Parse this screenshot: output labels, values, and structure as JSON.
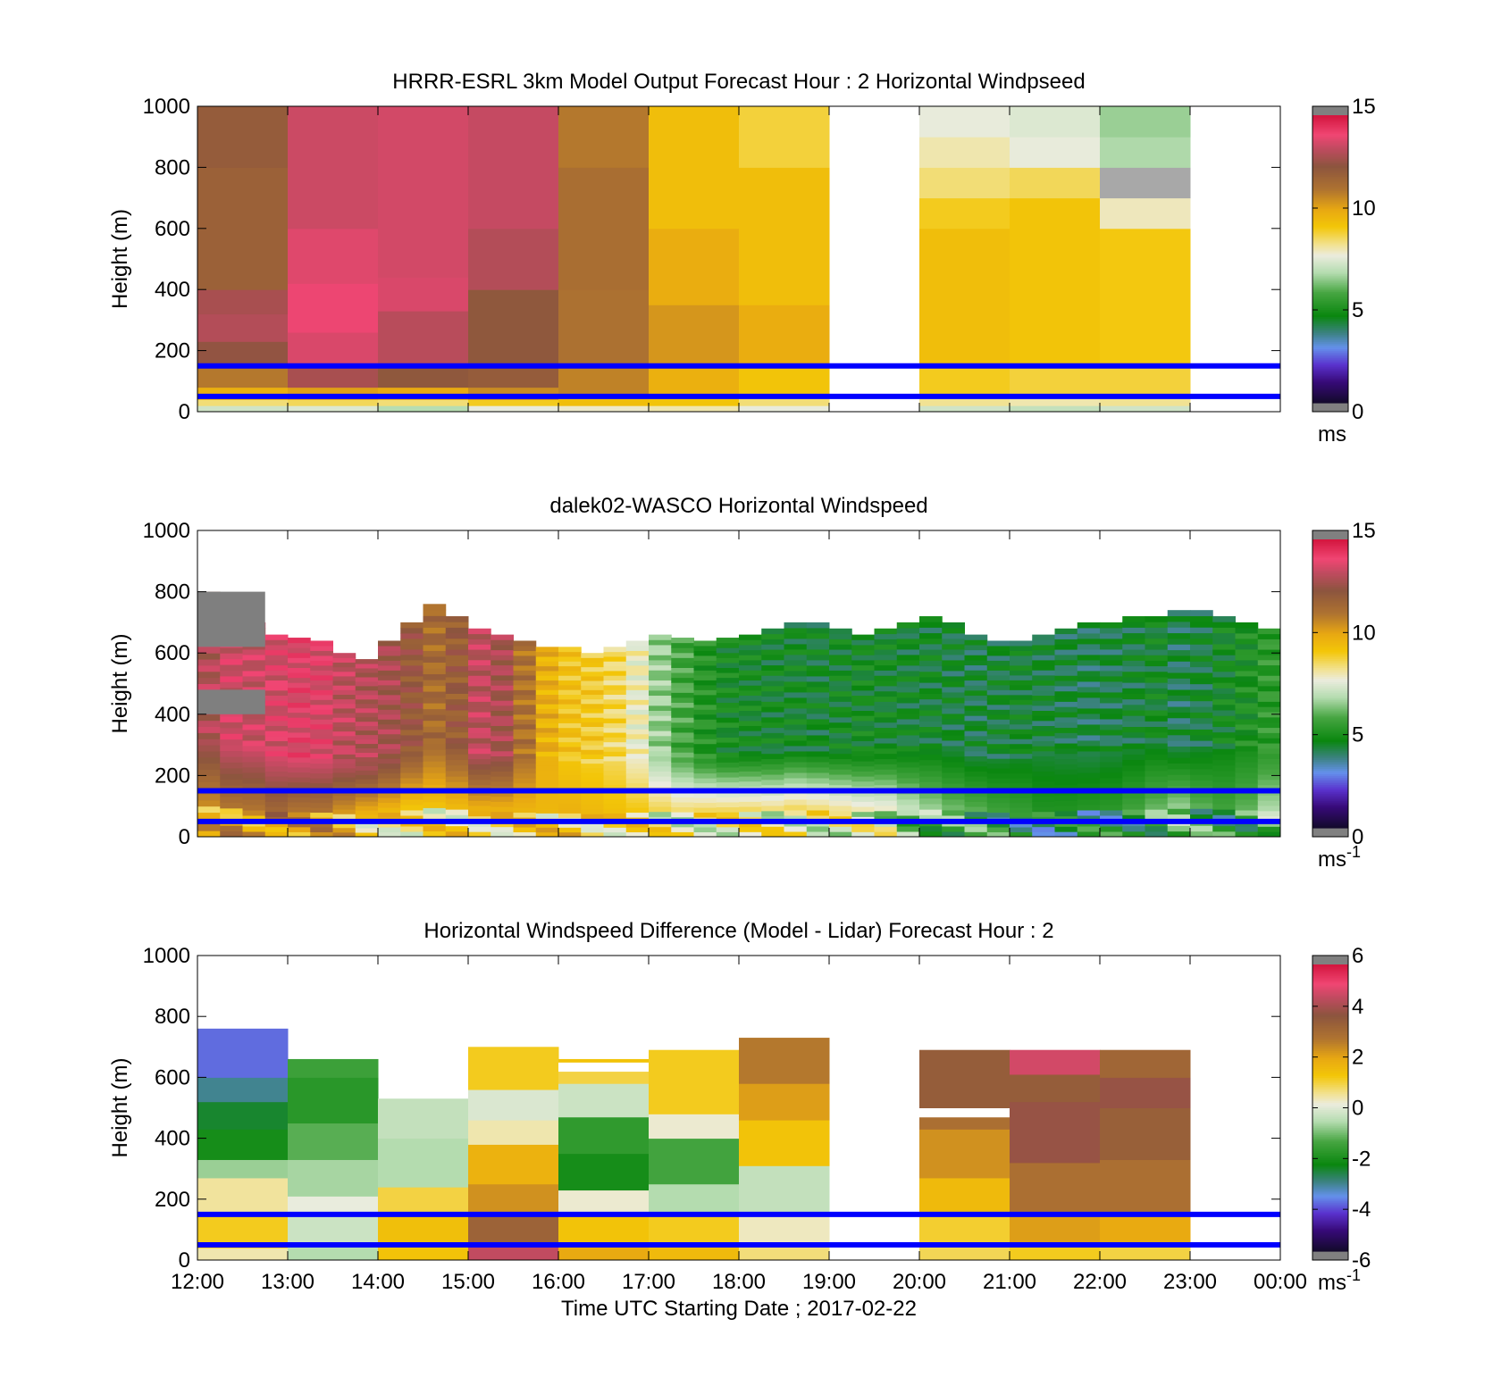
{
  "chart_data": [
    {
      "type": "heatmap",
      "title": "HRRR-ESRL 3km Model Output   Forecast Hour : 2 Horizontal Windpseed",
      "ylabel": "Height (m)",
      "xlabel": "",
      "xlim": [
        "12:00",
        "00:00"
      ],
      "ylim": [
        0,
        1000
      ],
      "y_ticks": [
        "0",
        "200",
        "400",
        "600",
        "800",
        "1000"
      ],
      "x_ticks": [
        "",
        "",
        "",
        "",
        "",
        "",
        "",
        "",
        "",
        "",
        "",
        "",
        ""
      ],
      "colorbar": {
        "min": 0,
        "max": 15,
        "ticks": [
          "0",
          "5",
          "10",
          "15"
        ],
        "unit": "ms",
        "unit_sup": "",
        "palette": "speed"
      },
      "reference_lines_m": [
        150,
        50
      ],
      "columns": [
        {
          "start_hour": 12,
          "end_hour": 13,
          "levels": [
            [
              0,
              20,
              7.2
            ],
            [
              20,
              40,
              8.4
            ],
            [
              40,
              80,
              9.8
            ],
            [
              80,
              150,
              11.0
            ],
            [
              150,
              230,
              12.4
            ],
            [
              230,
              320,
              13.0
            ],
            [
              320,
              400,
              12.8
            ],
            [
              400,
              800,
              11.8
            ],
            [
              800,
              1000,
              12.0
            ]
          ]
        },
        {
          "start_hour": 13,
          "end_hour": 14,
          "levels": [
            [
              0,
              20,
              7.4
            ],
            [
              20,
              40,
              8.6
            ],
            [
              40,
              80,
              10.2
            ],
            [
              80,
              150,
              12.8
            ],
            [
              150,
              260,
              13.6
            ],
            [
              260,
              420,
              13.9
            ],
            [
              420,
              600,
              13.7
            ],
            [
              600,
              1000,
              13.4
            ]
          ]
        },
        {
          "start_hour": 14,
          "end_hour": 15,
          "levels": [
            [
              0,
              20,
              6.8
            ],
            [
              20,
              40,
              8.4
            ],
            [
              40,
              80,
              10.0
            ],
            [
              80,
              150,
              12.2
            ],
            [
              150,
              330,
              13.1
            ],
            [
              330,
              440,
              13.6
            ],
            [
              440,
              1000,
              13.5
            ]
          ]
        },
        {
          "start_hour": 15,
          "end_hour": 16,
          "levels": [
            [
              0,
              20,
              7.6
            ],
            [
              20,
              40,
              9.0
            ],
            [
              40,
              80,
              10.6
            ],
            [
              80,
              150,
              12.0
            ],
            [
              150,
              400,
              12.2
            ],
            [
              400,
              600,
              13.0
            ],
            [
              600,
              1000,
              13.3
            ]
          ]
        },
        {
          "start_hour": 16,
          "end_hour": 17,
          "levels": [
            [
              0,
              20,
              7.8
            ],
            [
              20,
              50,
              9.4
            ],
            [
              50,
              150,
              10.8
            ],
            [
              150,
              400,
              11.2
            ],
            [
              400,
              800,
              11.3
            ],
            [
              800,
              1000,
              11.0
            ]
          ]
        },
        {
          "start_hour": 17,
          "end_hour": 18,
          "levels": [
            [
              0,
              20,
              8.0
            ],
            [
              20,
              50,
              9.2
            ],
            [
              50,
              150,
              9.8
            ],
            [
              150,
              350,
              10.4
            ],
            [
              350,
              600,
              9.9
            ],
            [
              600,
              1000,
              9.4
            ]
          ]
        },
        {
          "start_hour": 18,
          "end_hour": 19,
          "levels": [
            [
              0,
              20,
              7.6
            ],
            [
              20,
              50,
              8.4
            ],
            [
              50,
              150,
              9.2
            ],
            [
              150,
              350,
              9.9
            ],
            [
              350,
              800,
              9.4
            ],
            [
              800,
              1000,
              8.8
            ]
          ]
        },
        {
          "start_hour": 20,
          "end_hour": 21,
          "levels": [
            [
              0,
              20,
              7.2
            ],
            [
              20,
              50,
              8.2
            ],
            [
              50,
              150,
              9.0
            ],
            [
              150,
              600,
              9.4
            ],
            [
              600,
              700,
              9.0
            ],
            [
              700,
              800,
              8.4
            ],
            [
              800,
              900,
              8.0
            ],
            [
              900,
              1000,
              7.6
            ]
          ]
        },
        {
          "start_hour": 21,
          "end_hour": 22,
          "levels": [
            [
              0,
              20,
              7.0
            ],
            [
              20,
              50,
              8.0
            ],
            [
              50,
              150,
              8.8
            ],
            [
              150,
              700,
              9.2
            ],
            [
              700,
              800,
              8.6
            ],
            [
              800,
              900,
              7.6
            ],
            [
              900,
              1000,
              7.4
            ]
          ]
        },
        {
          "start_hour": 22,
          "end_hour": 23,
          "levels": [
            [
              0,
              20,
              7.2
            ],
            [
              20,
              50,
              8.2
            ],
            [
              50,
              150,
              8.8
            ],
            [
              150,
              600,
              9.1
            ],
            [
              600,
              700,
              7.9
            ],
            [
              700,
              800,
              null
            ],
            [
              800,
              900,
              6.7
            ],
            [
              900,
              1000,
              6.5
            ]
          ]
        }
      ]
    },
    {
      "type": "heatmap",
      "title": "dalek02-WASCO  Horizontal Windspeed",
      "ylabel": "Height (m)",
      "xlabel": "",
      "xlim": [
        "12:00",
        "00:00"
      ],
      "ylim": [
        0,
        1000
      ],
      "y_ticks": [
        "0",
        "200",
        "400",
        "600",
        "800",
        "1000"
      ],
      "x_ticks": [
        "",
        "",
        "",
        "",
        "",
        "",
        "",
        "",
        "",
        "",
        "",
        "",
        ""
      ],
      "colorbar": {
        "min": 0,
        "max": 15,
        "ticks": [
          "0",
          "5",
          "10",
          "15"
        ],
        "unit": "ms",
        "unit_sup": "-1",
        "palette": "speed"
      },
      "reference_lines_m": [
        150,
        50
      ],
      "profile_interval_minutes": 15,
      "profile_tops_m": [
        800,
        750,
        700,
        660,
        650,
        640,
        600,
        580,
        640,
        700,
        760,
        720,
        680,
        660,
        640,
        620,
        620,
        600,
        620,
        640,
        660,
        650,
        640,
        650,
        660,
        680,
        700,
        700,
        680,
        660,
        680,
        700,
        720,
        700,
        660,
        640,
        640,
        660,
        680,
        700,
        700,
        720,
        720,
        740,
        740,
        720,
        700,
        680
      ],
      "profile_mid_speed": [
        13.0,
        13.5,
        13.4,
        13.6,
        13.8,
        13.7,
        13.2,
        13.0,
        12.8,
        12.2,
        11.4,
        12.0,
        13.2,
        12.8,
        11.2,
        9.8,
        9.2,
        9.0,
        8.6,
        7.8,
        6.5,
        5.6,
        5.0,
        4.6,
        4.5,
        4.4,
        4.4,
        4.3,
        4.4,
        4.5,
        4.4,
        4.3,
        4.3,
        4.2,
        4.1,
        4.2,
        4.3,
        4.2,
        4.1,
        4.0,
        4.1,
        4.2,
        4.4,
        4.0,
        4.2,
        4.5,
        4.8,
        5.2
      ],
      "profile_low_speed": [
        10.5,
        11.0,
        11.0,
        11.5,
        11.0,
        11.0,
        10.2,
        9.6,
        9.4,
        9.0,
        9.2,
        9.4,
        9.6,
        9.6,
        9.6,
        9.6,
        9.8,
        9.6,
        9.4,
        9.2,
        8.8,
        8.6,
        8.8,
        8.8,
        8.8,
        8.6,
        8.8,
        8.6,
        8.4,
        8.2,
        8.0,
        7.2,
        6.6,
        6.2,
        6.0,
        5.6,
        5.4,
        5.0,
        5.0,
        5.1,
        5.2,
        5.6,
        6.1,
        6.6,
        6.0,
        5.6,
        6.0,
        6.8
      ],
      "isolated_gray_patches_m": [
        [
          620,
          800
        ],
        [
          400,
          480
        ]
      ]
    },
    {
      "type": "heatmap",
      "title": "Horizontal Windspeed Difference (Model - Lidar) Forecast Hour : 2",
      "ylabel": "Height (m)",
      "xlabel": "Time UTC  Starting Date ; 2017-02-22",
      "xlim": [
        "12:00",
        "00:00"
      ],
      "ylim": [
        0,
        1000
      ],
      "y_ticks": [
        "0",
        "200",
        "400",
        "600",
        "800",
        "1000"
      ],
      "x_ticks": [
        "12:00",
        "13:00",
        "14:00",
        "15:00",
        "16:00",
        "17:00",
        "18:00",
        "19:00",
        "20:00",
        "21:00",
        "22:00",
        "23:00",
        "00:00"
      ],
      "colorbar": {
        "min": -6,
        "max": 6,
        "ticks": [
          "-6",
          "-4",
          "-2",
          "0",
          "2",
          "4",
          "6"
        ],
        "unit": "ms",
        "unit_sup": "-1",
        "palette": "diff"
      },
      "reference_lines_m": [
        150,
        50
      ],
      "columns": [
        {
          "start_hour": 12,
          "end_hour": 13,
          "levels": [
            [
              0,
              40,
              0.4
            ],
            [
              40,
              150,
              1.2
            ],
            [
              150,
              270,
              0.5
            ],
            [
              270,
              330,
              -0.8
            ],
            [
              330,
              430,
              -2.2
            ],
            [
              430,
              520,
              -2.6
            ],
            [
              520,
              600,
              -3.2
            ],
            [
              600,
              760,
              -4.0
            ]
          ]
        },
        {
          "start_hour": 13,
          "end_hour": 14,
          "levels": [
            [
              0,
              50,
              -0.6
            ],
            [
              50,
              150,
              -0.3
            ],
            [
              150,
              210,
              0.1
            ],
            [
              210,
              330,
              -0.7
            ],
            [
              330,
              450,
              -1.3
            ],
            [
              450,
              600,
              -1.9
            ],
            [
              600,
              660,
              -1.6
            ]
          ]
        },
        {
          "start_hour": 14,
          "end_hour": 15,
          "levels": [
            [
              0,
              50,
              1.4
            ],
            [
              50,
              150,
              1.5
            ],
            [
              150,
              240,
              1.0
            ],
            [
              240,
              400,
              -0.6
            ],
            [
              400,
              530,
              -0.4
            ]
          ]
        },
        {
          "start_hour": 15,
          "end_hour": 16,
          "levels": [
            [
              0,
              50,
              4.6
            ],
            [
              50,
              150,
              3.4
            ],
            [
              150,
              250,
              2.4
            ],
            [
              250,
              380,
              1.8
            ],
            [
              380,
              460,
              0.4
            ],
            [
              460,
              560,
              -0.1
            ],
            [
              560,
              700,
              1.2
            ]
          ]
        },
        {
          "start_hour": 16,
          "end_hour": 17,
          "levels": [
            [
              0,
              50,
              2.0
            ],
            [
              50,
              150,
              1.4
            ],
            [
              150,
              230,
              0.2
            ],
            [
              230,
              350,
              -2.2
            ],
            [
              350,
              470,
              -1.8
            ],
            [
              470,
              580,
              -0.3
            ],
            [
              580,
              620,
              1.0
            ],
            [
              620,
              650,
              null
            ],
            [
              650,
              660,
              1.4
            ]
          ]
        },
        {
          "start_hour": 17,
          "end_hour": 18,
          "levels": [
            [
              0,
              50,
              1.6
            ],
            [
              50,
              150,
              1.2
            ],
            [
              150,
              250,
              -0.6
            ],
            [
              250,
              400,
              -1.5
            ],
            [
              400,
              480,
              0.2
            ],
            [
              480,
              690,
              1.2
            ]
          ]
        },
        {
          "start_hour": 18,
          "end_hour": 19,
          "levels": [
            [
              0,
              50,
              0.7
            ],
            [
              50,
              150,
              0.3
            ],
            [
              150,
              310,
              -0.4
            ],
            [
              310,
              460,
              1.4
            ],
            [
              460,
              580,
              2.2
            ],
            [
              580,
              730,
              2.8
            ]
          ]
        },
        {
          "start_hour": 20,
          "end_hour": 21,
          "levels": [
            [
              0,
              50,
              0.9
            ],
            [
              50,
              150,
              1.1
            ],
            [
              150,
              270,
              1.6
            ],
            [
              270,
              430,
              2.4
            ],
            [
              430,
              470,
              3.0
            ],
            [
              470,
              500,
              null
            ],
            [
              500,
              690,
              3.6
            ]
          ]
        },
        {
          "start_hour": 21,
          "end_hour": 22,
          "levels": [
            [
              0,
              50,
              1.2
            ],
            [
              50,
              150,
              2.2
            ],
            [
              150,
              320,
              3.0
            ],
            [
              320,
              520,
              4.0
            ],
            [
              520,
              610,
              3.6
            ],
            [
              610,
              690,
              4.8
            ]
          ]
        },
        {
          "start_hour": 22,
          "end_hour": 23,
          "levels": [
            [
              0,
              50,
              1.0
            ],
            [
              50,
              150,
              2.0
            ],
            [
              150,
              330,
              3.0
            ],
            [
              330,
              500,
              3.5
            ],
            [
              500,
              600,
              4.0
            ],
            [
              600,
              690,
              3.3
            ]
          ]
        }
      ]
    }
  ],
  "colors": {
    "reference_line": "#0000ff",
    "missing_in_colorbar": "#808080"
  }
}
